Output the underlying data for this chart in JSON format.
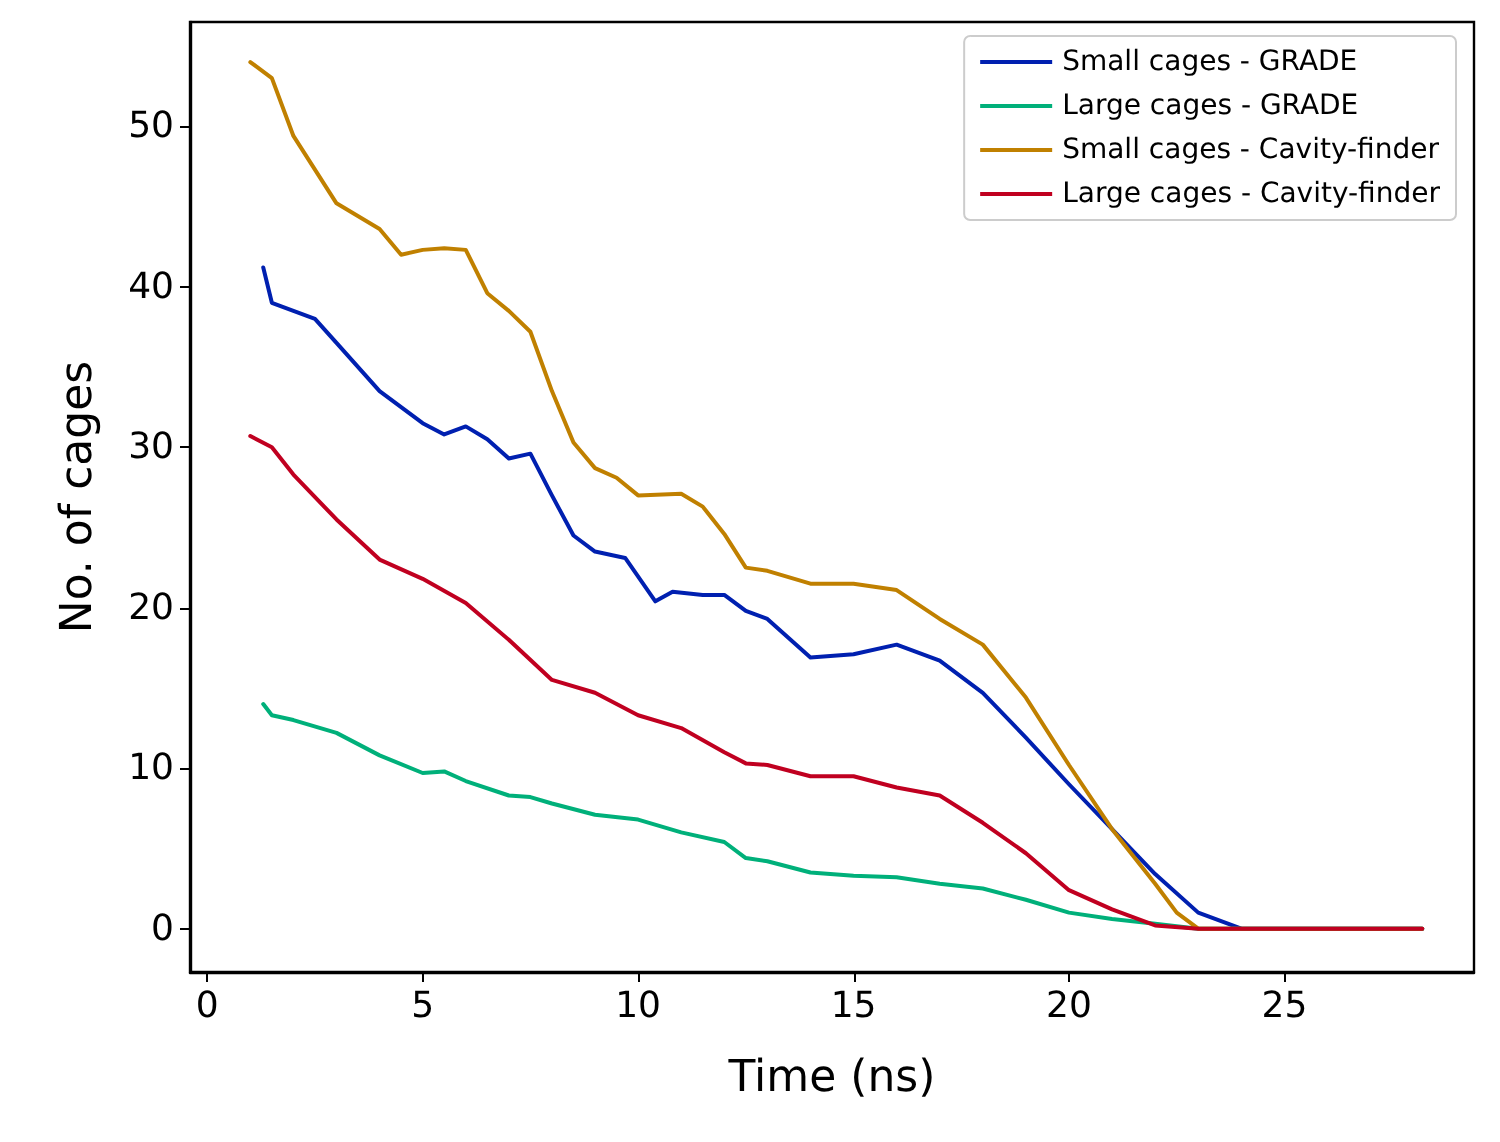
{
  "chart_data": {
    "type": "line",
    "xlabel": "Time (ns)",
    "ylabel": "No. of cages",
    "xlim": [
      -0.4,
      29.4
    ],
    "ylim": [
      -2.7,
      56.5
    ],
    "xticks": [
      0,
      5,
      10,
      15,
      20,
      25
    ],
    "yticks": [
      0,
      10,
      20,
      30,
      40,
      50
    ],
    "grid": false,
    "legend": "top right",
    "marker": "none",
    "line_style": "solid",
    "series": [
      {
        "name": "Small cages - GRADE",
        "color": "#0020b0",
        "x": [
          1.3,
          1.5,
          2,
          2.5,
          3,
          4,
          5,
          5.5,
          6,
          6.5,
          7,
          7.5,
          8,
          8.5,
          9,
          9.7,
          10.4,
          10.8,
          11.5,
          12,
          12.5,
          13,
          14,
          15,
          16,
          17,
          18,
          19,
          20,
          21,
          22,
          23,
          24,
          28.2
        ],
        "values": [
          41.2,
          39,
          38.5,
          38,
          36.5,
          33.5,
          31.5,
          30.8,
          31.3,
          30.5,
          29.3,
          29.6,
          27,
          24.5,
          23.5,
          23.1,
          20.4,
          21,
          20.8,
          20.8,
          19.8,
          19.3,
          16.9,
          17.1,
          17.7,
          16.7,
          14.7,
          11.9,
          9,
          6.2,
          3.4,
          1,
          0,
          0
        ]
      },
      {
        "name": "Large cages - GRADE",
        "color": "#00b07a",
        "x": [
          1.3,
          1.5,
          2,
          3,
          4,
          5,
          5.5,
          6,
          7,
          7.5,
          8,
          9,
          10,
          11,
          12,
          12.5,
          13,
          14,
          15,
          16,
          17,
          18,
          19,
          20,
          21,
          22,
          23,
          28.2
        ],
        "values": [
          14,
          13.3,
          13,
          12.2,
          10.8,
          9.7,
          9.8,
          9.2,
          8.3,
          8.2,
          7.8,
          7.1,
          6.8,
          6,
          5.4,
          4.4,
          4.2,
          3.5,
          3.3,
          3.2,
          2.8,
          2.5,
          1.8,
          1,
          0.6,
          0.3,
          0,
          0
        ]
      },
      {
        "name": "Small cages - Cavity-finder",
        "color": "#c08000",
        "x": [
          1,
          1.5,
          2,
          3,
          4,
          4.5,
          5,
          5.5,
          6,
          6.5,
          7,
          7.5,
          8,
          8.5,
          9,
          9.5,
          10,
          11,
          11.5,
          12,
          12.5,
          13,
          14,
          15,
          16,
          17,
          18,
          19,
          20,
          21,
          22,
          22.5,
          23,
          28.2
        ],
        "values": [
          54,
          53,
          49.4,
          45.2,
          43.6,
          42,
          42.3,
          42.4,
          42.3,
          39.6,
          38.5,
          37.2,
          33.5,
          30.3,
          28.7,
          28.1,
          27,
          27.1,
          26.3,
          24.6,
          22.5,
          22.3,
          21.5,
          21.5,
          21.1,
          19.3,
          17.7,
          14.4,
          10.2,
          6.2,
          2.8,
          1,
          0,
          0
        ]
      },
      {
        "name": "Large cages - Cavity-finder",
        "color": "#c00020",
        "x": [
          1,
          1.5,
          2,
          3,
          4,
          5,
          6,
          7,
          8,
          9,
          10,
          11,
          12,
          12.5,
          13,
          14,
          15,
          16,
          17,
          18,
          19,
          20,
          21,
          22,
          23,
          28.2
        ],
        "values": [
          30.7,
          30,
          28.3,
          25.5,
          23,
          21.8,
          20.3,
          18,
          15.5,
          14.7,
          13.3,
          12.5,
          11,
          10.3,
          10.2,
          9.5,
          9.5,
          8.8,
          8.3,
          6.6,
          4.7,
          2.4,
          1.2,
          0.2,
          0,
          0
        ]
      }
    ]
  }
}
